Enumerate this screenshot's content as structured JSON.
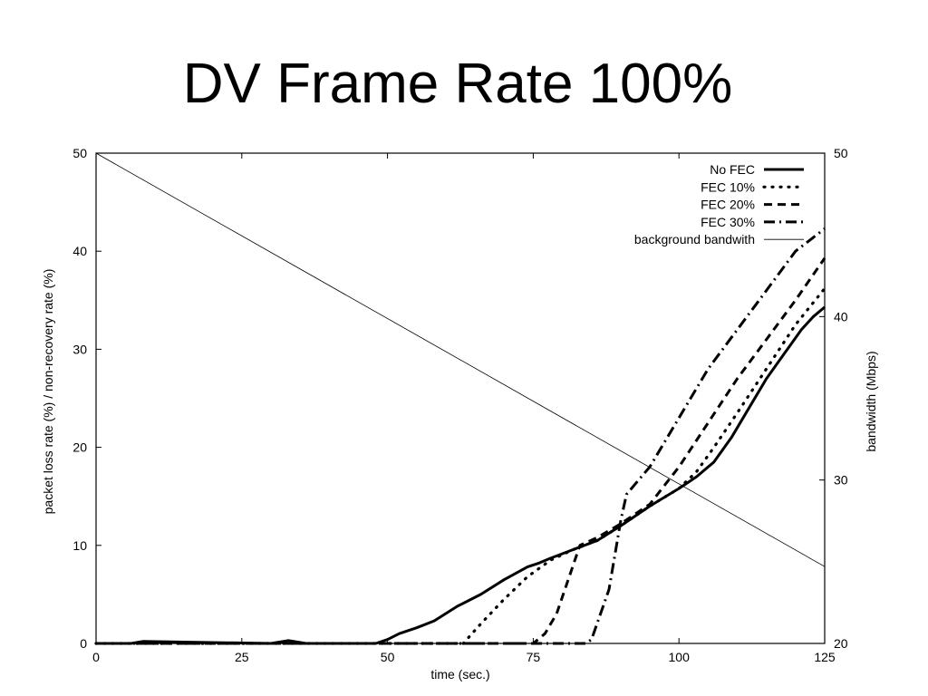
{
  "slide": {
    "title": "DV Frame Rate 100%"
  },
  "chart_data": {
    "type": "line",
    "title": "",
    "xlabel": "time (sec.)",
    "ylabel": "packet loss rate (%) / non-recovery rate (%)",
    "y2label": "bandwidth (Mbps)",
    "xlim": [
      0,
      125
    ],
    "ylim": [
      0,
      50
    ],
    "y2lim": [
      20,
      50
    ],
    "xticks": [
      0,
      25,
      50,
      75,
      100,
      125
    ],
    "yticks": [
      0,
      10,
      20,
      30,
      40,
      50
    ],
    "y2ticks": [
      20,
      30,
      40,
      50
    ],
    "grid": false,
    "legend_position": "top-right",
    "series": [
      {
        "name": "No FEC",
        "style": "solid-thick",
        "axis": "left",
        "x": [
          0,
          6,
          8,
          30,
          33,
          36,
          48,
          50,
          52,
          55,
          58,
          62,
          66,
          70,
          74,
          76,
          78,
          82,
          86,
          90,
          95,
          100,
          103,
          106,
          109,
          112,
          115,
          118,
          121,
          123,
          125
        ],
        "y": [
          0,
          0,
          0.2,
          0,
          0.3,
          0,
          0,
          0.4,
          1.0,
          1.6,
          2.3,
          3.8,
          5.0,
          6.5,
          7.8,
          8.2,
          8.7,
          9.6,
          10.5,
          12.0,
          14.0,
          15.8,
          17.0,
          18.5,
          21.0,
          24.0,
          27.0,
          29.5,
          32.0,
          33.3,
          34.3
        ]
      },
      {
        "name": "FEC 10%",
        "style": "dotted",
        "axis": "left",
        "x": [
          0,
          63,
          66,
          70,
          74,
          78,
          82,
          86,
          90,
          95,
          100,
          103,
          106,
          110,
          115,
          120,
          125
        ],
        "y": [
          0,
          0,
          2.0,
          4.5,
          6.8,
          8.5,
          9.6,
          10.5,
          12.0,
          14.0,
          15.8,
          17.5,
          20.0,
          23.5,
          28.0,
          32.5,
          36.2
        ]
      },
      {
        "name": "FEC 20%",
        "style": "dashed",
        "axis": "left",
        "x": [
          0,
          75,
          77,
          79,
          81,
          83,
          86,
          90,
          95,
          100,
          105,
          110,
          115,
          120,
          125
        ],
        "y": [
          0,
          0,
          1.0,
          3.0,
          6.5,
          10.0,
          10.8,
          12.2,
          14.2,
          18.0,
          22.5,
          27.0,
          31.0,
          35.0,
          39.3
        ]
      },
      {
        "name": "FEC 30%",
        "style": "dash-dot",
        "axis": "left",
        "x": [
          0,
          84,
          85,
          88,
          90,
          91,
          95,
          100,
          105,
          110,
          115,
          120,
          125
        ],
        "y": [
          0,
          0,
          0.4,
          5.5,
          12.5,
          15.2,
          18.0,
          23.0,
          28.0,
          32.0,
          36.0,
          40.0,
          42.3
        ]
      },
      {
        "name": "background bandwith",
        "style": "solid-thin",
        "axis": "right",
        "x": [
          0,
          125
        ],
        "y": [
          50,
          24.7
        ]
      }
    ]
  }
}
